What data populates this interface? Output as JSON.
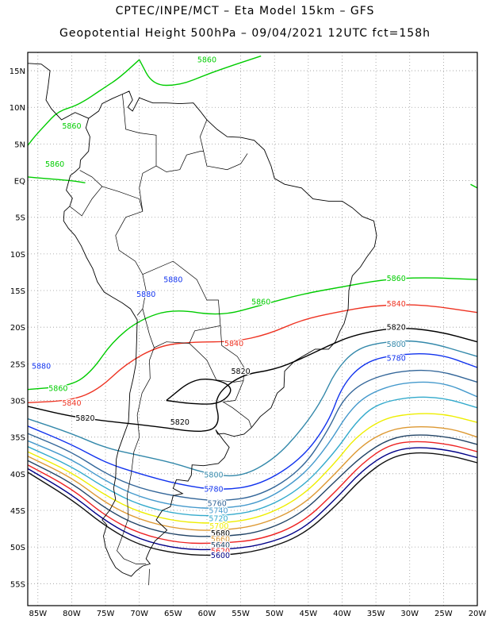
{
  "header": {
    "title_line1": "CPTEC/INPE/MCT –  Eta Model 15km – GFS",
    "title_line2": "Geopotential Height 500hPa – 09/04/2021 12UTC fct=158h"
  },
  "axes": {
    "lat_labels": [
      "15N",
      "10N",
      "5N",
      "EQ",
      "5S",
      "10S",
      "15S",
      "20S",
      "25S",
      "30S",
      "35S",
      "40S",
      "45S",
      "50S",
      "55S"
    ],
    "lat_values": [
      15,
      10,
      5,
      0,
      -5,
      -10,
      -15,
      -20,
      -25,
      -30,
      -35,
      -40,
      -45,
      -50,
      -55
    ],
    "lon_labels": [
      "85W",
      "80W",
      "75W",
      "70W",
      "65W",
      "60W",
      "55W",
      "50W",
      "45W",
      "40W",
      "35W",
      "30W",
      "25W",
      "20W"
    ],
    "lon_values": [
      -85,
      -80,
      -75,
      -70,
      -65,
      -60,
      -55,
      -50,
      -45,
      -40,
      -35,
      -30,
      -25,
      -20
    ],
    "lat_range": [
      -58,
      17.5
    ],
    "lon_range": [
      -86.5,
      -20
    ],
    "grid": "dotted"
  },
  "colors": {
    "c5860": "#00cc00",
    "c5840": "#ee3322",
    "c5820": "#000000",
    "c5800": "#3388aa",
    "c5780": "#1133ee",
    "c5760": "#336699",
    "c5740": "#4499cc",
    "c5720": "#33aacc",
    "c5700": "#eeee00",
    "c5680": "#dd9933",
    "c5660": "#224466",
    "c5640": "#ee2222",
    "c5620": "#000088",
    "c5600": "#111111",
    "coast": "#000000"
  },
  "contour_labels": [
    {
      "text": "5860",
      "color": "#00cc00",
      "lon": -60,
      "lat": 16.5
    },
    {
      "text": "5860",
      "color": "#00cc00",
      "lon": -80,
      "lat": 7.5
    },
    {
      "text": "5860",
      "color": "#00cc00",
      "lon": -82.5,
      "lat": 2.3
    },
    {
      "text": "5880",
      "color": "#1133ee",
      "lon": -65,
      "lat": -13.5
    },
    {
      "text": "5880",
      "color": "#1133ee",
      "lon": -69,
      "lat": -15.5
    },
    {
      "text": "5860",
      "color": "#00cc00",
      "lon": -52,
      "lat": -16.5
    },
    {
      "text": "5860",
      "color": "#00cc00",
      "lon": -32,
      "lat": -13.3
    },
    {
      "text": "5840",
      "color": "#ee3322",
      "lon": -32,
      "lat": -16.8
    },
    {
      "text": "5820",
      "color": "#000000",
      "lon": -32,
      "lat": -20
    },
    {
      "text": "5800",
      "color": "#3388aa",
      "lon": -32,
      "lat": -22.3
    },
    {
      "text": "5780",
      "color": "#1133ee",
      "lon": -32,
      "lat": -24.2
    },
    {
      "text": "5840",
      "color": "#ee3322",
      "lon": -56,
      "lat": -22.2
    },
    {
      "text": "5820",
      "color": "#000000",
      "lon": -55,
      "lat": -26
    },
    {
      "text": "5880",
      "color": "#1133ee",
      "lon": -84.5,
      "lat": -25.3
    },
    {
      "text": "5860",
      "color": "#00cc00",
      "lon": -82,
      "lat": -28.3
    },
    {
      "text": "5840",
      "color": "#ee3322",
      "lon": -80,
      "lat": -30.3
    },
    {
      "text": "5820",
      "color": "#000000",
      "lon": -78,
      "lat": -32.4
    },
    {
      "text": "5820",
      "color": "#000000",
      "lon": -64,
      "lat": -32.9
    },
    {
      "text": "5800",
      "color": "#3388aa",
      "lon": -59,
      "lat": -40.1
    },
    {
      "text": "5780",
      "color": "#1133ee",
      "lon": -59,
      "lat": -42.1
    },
    {
      "text": "5760",
      "color": "#336699",
      "lon": -58.5,
      "lat": -44
    },
    {
      "text": "5740",
      "color": "#4499cc",
      "lon": -58.3,
      "lat": -45
    },
    {
      "text": "5720",
      "color": "#33aacc",
      "lon": -58.3,
      "lat": -46.1
    },
    {
      "text": "5700",
      "color": "#eeee00",
      "lon": -58.2,
      "lat": -47.1
    },
    {
      "text": "5680",
      "color": "#000000",
      "lon": -58,
      "lat": -48.1
    },
    {
      "text": "5660",
      "color": "#dd9933",
      "lon": -58,
      "lat": -48.9
    },
    {
      "text": "5640",
      "color": "#224466",
      "lon": -58,
      "lat": -49.7
    },
    {
      "text": "5620",
      "color": "#ee2222",
      "lon": -58,
      "lat": -50.5
    },
    {
      "text": "5600",
      "color": "#000088",
      "lon": -58,
      "lat": -51.1
    }
  ]
}
